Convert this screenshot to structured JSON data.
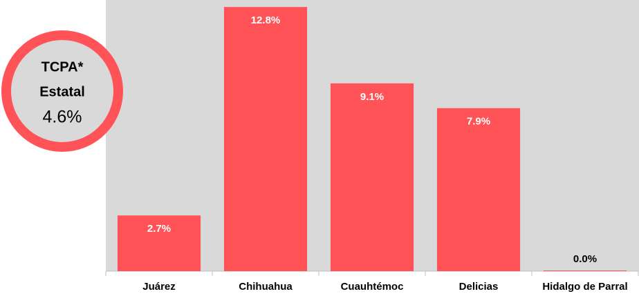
{
  "chart_data": {
    "type": "bar",
    "categories": [
      "Juárez",
      "Chihuahua",
      "Cuauhtémoc",
      "Delicias",
      "Hidalgo de Parral"
    ],
    "values": [
      2.7,
      12.8,
      9.1,
      7.9,
      0.0
    ],
    "value_labels": [
      "2.7%",
      "12.8%",
      "9.1%",
      "7.9%",
      "0.0%"
    ],
    "color": "#ff5357",
    "ylim": [
      0,
      13.14
    ],
    "annotation": {
      "lines": [
        "TCPA*",
        "Estatal"
      ],
      "value": "4.6%"
    }
  }
}
